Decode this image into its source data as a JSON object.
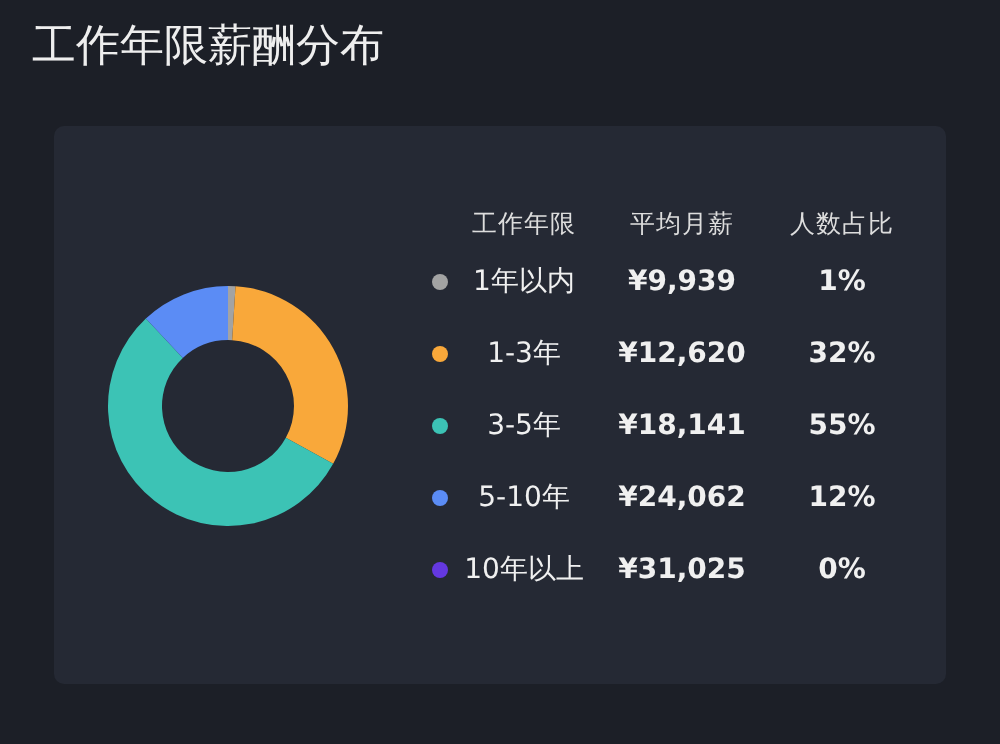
{
  "chart_data": {
    "type": "donut",
    "title": "工作年限薪酬分布",
    "legend_title": "工作年限",
    "legend": "right",
    "categories": [
      "1年以内",
      "1-3年",
      "3-5年",
      "5-10年",
      "10年以上"
    ],
    "values": [
      1,
      32,
      55,
      12,
      0
    ],
    "colors": [
      "#a3a3a3",
      "#f9a83a",
      "#3cc3b5",
      "#5b8cf5",
      "#6438e0"
    ],
    "value_labels": [
      "1%",
      "32%",
      "55%",
      "12%",
      "0%"
    ],
    "annotations": [
      "平均月薪",
      "人数占比",
      "¥9,939",
      "¥12,620",
      "¥18,141",
      "¥24,062",
      "¥31,025"
    ]
  }
}
